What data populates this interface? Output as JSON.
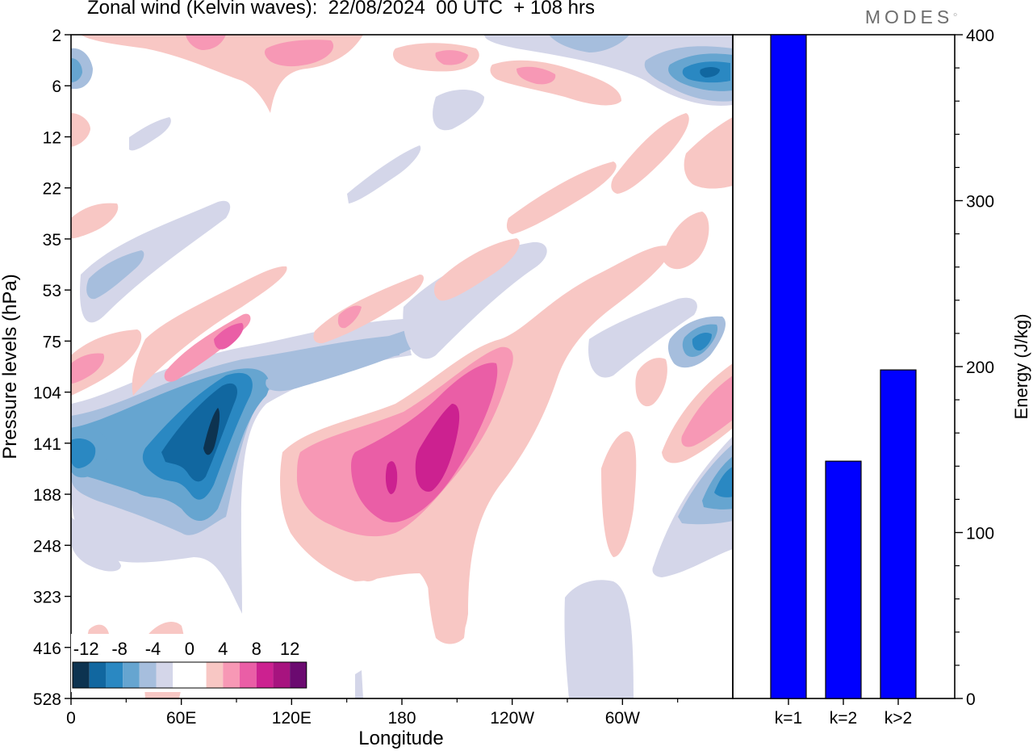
{
  "title": "Zonal wind (Kelvin waves):  22/08/2024  00 UTC  + 108 hrs",
  "logo": "MODES",
  "colors": {
    "neg": [
      "#0d3350",
      "#1167a0",
      "#2a88c2",
      "#66a5d0",
      "#a6bedd",
      "#d4d6e9"
    ],
    "pos": [
      "#f8c7c4",
      "#f798b5",
      "#ea5ea6",
      "#cc2190",
      "#a7137f",
      "#6b0a70"
    ],
    "bar": "#0000ff"
  },
  "chart_data": [
    {
      "type": "heatmap",
      "title": "Zonal wind (Kelvin waves):  22/08/2024  00 UTC  + 108 hrs",
      "xlabel": "Longitude",
      "ylabel": "Pressure levels (hPa)",
      "xticks": [
        "0",
        "60E",
        "120E",
        "180",
        "120W",
        "60W"
      ],
      "yticks": [
        "2",
        "6",
        "12",
        "22",
        "35",
        "53",
        "75",
        "104",
        "141",
        "188",
        "248",
        "323",
        "416",
        "528"
      ],
      "colorbar": {
        "labels": [
          "-12",
          "-8",
          "-4",
          "0",
          "4",
          "8",
          "12"
        ],
        "levels": [
          -14,
          -12,
          -10,
          -8,
          -6,
          -4,
          -2,
          0,
          2,
          4,
          6,
          8,
          10,
          12,
          14
        ]
      },
      "features": [
        {
          "lon": 75,
          "level": "141",
          "value": -13
        },
        {
          "lon": 50,
          "level": "141",
          "value": -12
        },
        {
          "lon": 20,
          "level": "141",
          "value": -8
        },
        {
          "lon": 105,
          "level": "104",
          "value": -8
        },
        {
          "lon": 145,
          "level": "75",
          "value": -4
        },
        {
          "lon": 210,
          "level": "53",
          "value": -8
        },
        {
          "lon": 335,
          "level": "75",
          "value": -8
        },
        {
          "lon": 345,
          "level": "188",
          "value": -8
        },
        {
          "lon": 345,
          "level": "6",
          "value": -10
        },
        {
          "lon": 195,
          "level": "141",
          "value": 12
        },
        {
          "lon": 170,
          "level": "188",
          "value": 10
        },
        {
          "lon": 75,
          "level": "75",
          "value": 8
        },
        {
          "lon": 5,
          "level": "104",
          "value": 8
        },
        {
          "lon": 345,
          "level": "104",
          "value": 6
        },
        {
          "lon": 95,
          "level": "2",
          "value": 6
        },
        {
          "lon": 230,
          "level": "6",
          "value": 4
        }
      ]
    },
    {
      "type": "bar",
      "categories": [
        "k=1",
        "k=2",
        "k>2"
      ],
      "values": [
        400,
        143,
        198
      ],
      "ylabel": "Energy (J/kg)",
      "ylim": [
        0,
        400
      ],
      "yticks": [
        "0",
        "100",
        "200",
        "300",
        "400"
      ]
    }
  ]
}
